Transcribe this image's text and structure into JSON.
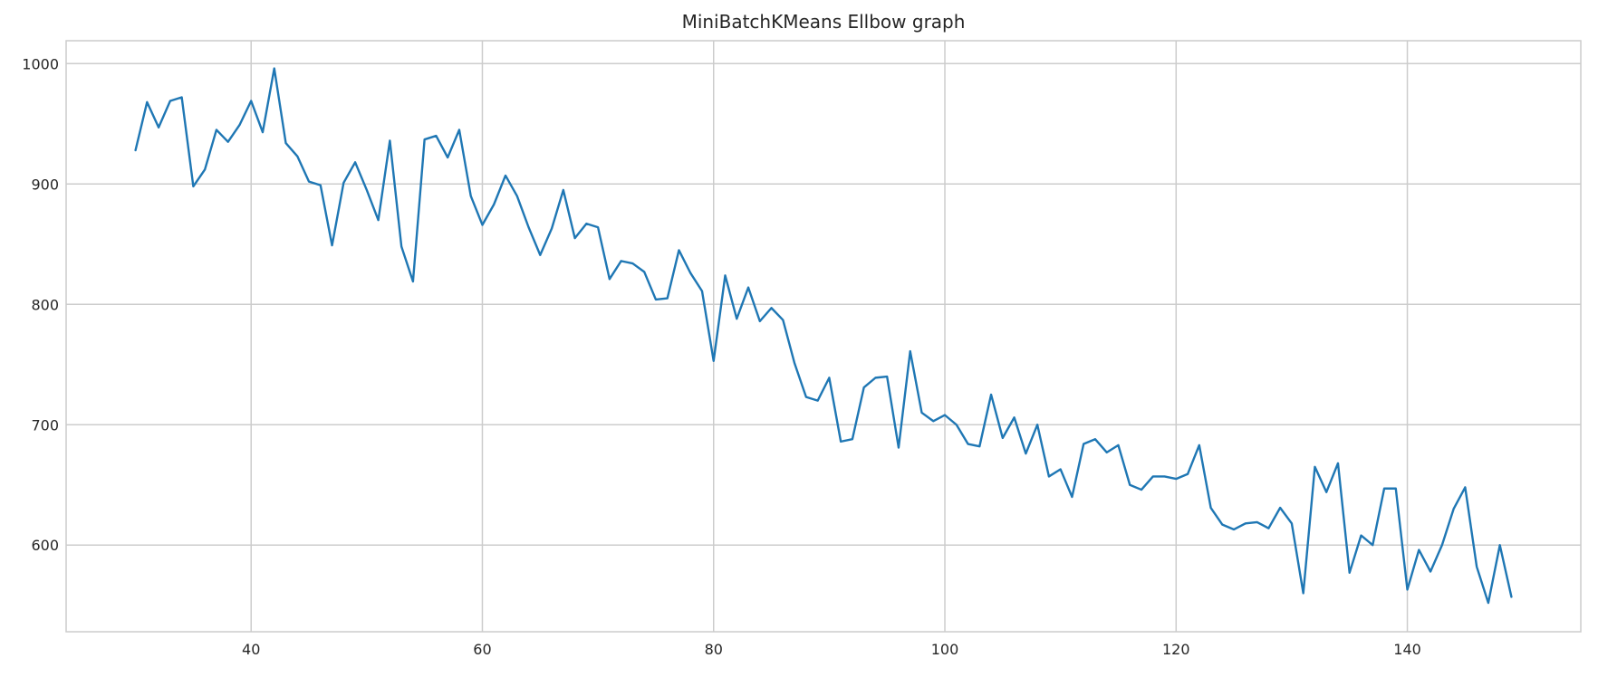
{
  "chart_data": {
    "type": "line",
    "title": "MiniBatchKMeans Ellbow graph",
    "xlabel": "",
    "ylabel": "",
    "xlim": [
      24,
      155
    ],
    "ylim": [
      528,
      1019
    ],
    "xticks": [
      40,
      60,
      80,
      100,
      120,
      140
    ],
    "yticks": [
      600,
      700,
      800,
      900,
      1000
    ],
    "grid": true,
    "series": [
      {
        "color": "#1f77b4",
        "x": [
          30,
          31,
          32,
          33,
          34,
          35,
          36,
          37,
          38,
          39,
          40,
          41,
          42,
          43,
          44,
          45,
          46,
          47,
          48,
          49,
          50,
          51,
          52,
          53,
          54,
          55,
          56,
          57,
          58,
          59,
          60,
          61,
          62,
          63,
          64,
          65,
          66,
          67,
          68,
          69,
          70,
          71,
          72,
          73,
          74,
          75,
          76,
          77,
          78,
          79,
          80,
          81,
          82,
          83,
          84,
          85,
          86,
          87,
          88,
          89,
          90,
          91,
          92,
          93,
          94,
          95,
          96,
          97,
          98,
          99,
          100,
          101,
          102,
          103,
          104,
          105,
          106,
          107,
          108,
          109,
          110,
          111,
          112,
          113,
          114,
          115,
          116,
          117,
          118,
          119,
          120,
          121,
          122,
          123,
          124,
          125,
          126,
          127,
          128,
          129,
          130,
          131,
          132,
          133,
          134,
          135,
          136,
          137,
          138,
          139,
          140,
          141,
          142,
          143,
          144,
          145,
          146,
          147,
          148,
          149
        ],
        "y": [
          928,
          968,
          947,
          969,
          972,
          898,
          912,
          945,
          935,
          949,
          969,
          943,
          996,
          934,
          923,
          902,
          899,
          849,
          901,
          918,
          895,
          870,
          936,
          848,
          819,
          937,
          940,
          922,
          945,
          890,
          866,
          883,
          907,
          890,
          864,
          841,
          863,
          895,
          855,
          867,
          864,
          821,
          836,
          834,
          827,
          804,
          805,
          845,
          826,
          811,
          753,
          824,
          788,
          814,
          786,
          797,
          787,
          751,
          723,
          720,
          739,
          686,
          688,
          731,
          739,
          740,
          681,
          761,
          710,
          703,
          708,
          700,
          684,
          682,
          725,
          689,
          706,
          676,
          700,
          657,
          663,
          640,
          684,
          688,
          677,
          683,
          650,
          646,
          657,
          657,
          655,
          659,
          683,
          631,
          617,
          613,
          618,
          619,
          614,
          631,
          618,
          560,
          665,
          644,
          668,
          577,
          608,
          600,
          647,
          647,
          563,
          596,
          578,
          600,
          630,
          648,
          582,
          552,
          600,
          557
        ]
      }
    ]
  }
}
